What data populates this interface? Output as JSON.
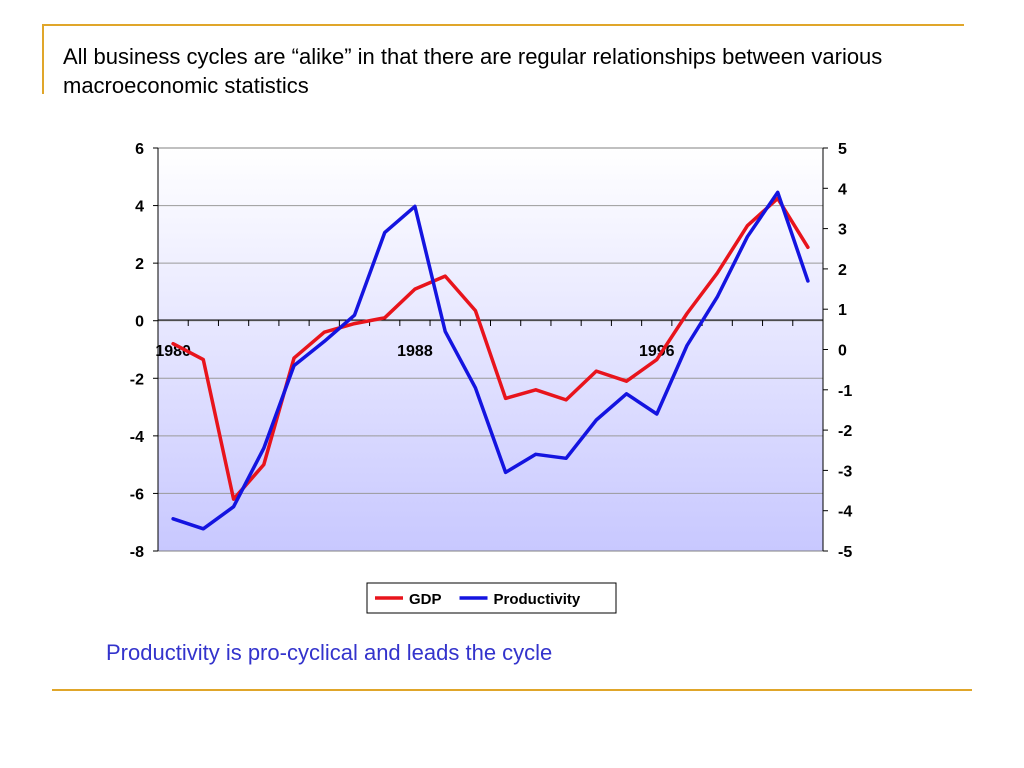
{
  "slide": {
    "title": "All business cycles are “alike” in that there are regular relationships between various macroeconomic statistics",
    "caption": "Productivity is pro-cyclical and leads the cycle"
  },
  "chart_data": {
    "type": "line",
    "x": [
      1980,
      1981,
      1982,
      1983,
      1984,
      1985,
      1986,
      1987,
      1988,
      1989,
      1990,
      1991,
      1992,
      1993,
      1994,
      1995,
      1996,
      1997,
      1998,
      1999,
      2000,
      2001
    ],
    "x_tick_labels": [
      "1980",
      "1988",
      "1996"
    ],
    "x_tick_values": [
      1980,
      1988,
      1996
    ],
    "left_axis": {
      "ylim": [
        -8,
        6
      ],
      "ticks": [
        6,
        4,
        2,
        0,
        -2,
        -4,
        -6,
        -8
      ]
    },
    "right_axis": {
      "ylim": [
        -5,
        5
      ],
      "ticks": [
        5,
        4,
        3,
        2,
        1,
        0,
        -1,
        -2,
        -3,
        -4,
        -5
      ]
    },
    "series": [
      {
        "name": "GDP",
        "axis": "left",
        "color": "#e8141c",
        "values": [
          -0.8,
          -1.35,
          -6.2,
          -5.0,
          -1.3,
          -0.4,
          -0.1,
          0.1,
          1.1,
          1.55,
          0.35,
          -2.7,
          -2.4,
          -2.75,
          -1.75,
          -2.1,
          -1.35,
          0.25,
          1.65,
          3.3,
          4.25,
          2.55
        ]
      },
      {
        "name": "Productivity",
        "axis": "right",
        "color": "#1414e0",
        "values": [
          -4.2,
          -4.45,
          -3.9,
          -2.45,
          -0.4,
          0.2,
          0.85,
          2.9,
          3.55,
          0.45,
          -0.95,
          -3.05,
          -2.6,
          -2.7,
          -1.75,
          -1.1,
          -1.6,
          0.1,
          1.3,
          2.8,
          3.9,
          1.7
        ]
      }
    ],
    "grid": true,
    "legend_position": "bottom"
  }
}
